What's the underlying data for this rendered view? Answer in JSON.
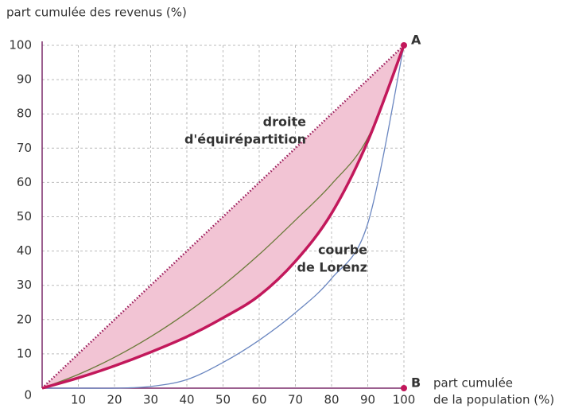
{
  "chart_data": {
    "type": "line",
    "ylabel": "part cumulée des revenus (%)",
    "xlabel": [
      "part cumulée",
      "de la population (%)"
    ],
    "x": [
      0,
      10,
      20,
      30,
      40,
      50,
      60,
      70,
      80,
      90,
      100
    ],
    "xlim": [
      0,
      100
    ],
    "ylim": [
      0,
      100
    ],
    "xticks": [
      10,
      20,
      30,
      40,
      50,
      60,
      70,
      80,
      90,
      100
    ],
    "yticks": [
      0,
      10,
      20,
      30,
      40,
      50,
      60,
      70,
      80,
      90,
      100
    ],
    "grid": true,
    "axis_color": "#7a2a6a",
    "fill_between": [
      0,
      1
    ],
    "fill_color": "#f2c4d4",
    "series": [
      {
        "color": "#9b1b5a",
        "style": "dotted",
        "width": 2.5,
        "values": [
          0,
          10,
          20,
          30,
          40,
          50,
          60,
          70,
          80,
          90,
          100
        ]
      },
      {
        "color": "#c2185b",
        "style": "solid",
        "width": 3.5,
        "values": [
          0,
          3,
          6.5,
          10.5,
          15,
          20.5,
          27,
          37,
          51,
          72,
          100
        ]
      },
      {
        "color": "#6b7a3a",
        "style": "solid",
        "width": 1.3,
        "values": [
          0,
          4,
          9,
          15,
          22,
          30,
          39,
          49,
          59.5,
          73,
          100
        ]
      },
      {
        "color": "#6a86c0",
        "style": "solid",
        "width": 1.3,
        "values": [
          0,
          0,
          0,
          0.5,
          2.5,
          7.5,
          14,
          22,
          32,
          48,
          100
        ]
      }
    ],
    "points": [
      {
        "label": "A",
        "x": 100,
        "y": 100,
        "color": "#c2185b"
      },
      {
        "label": "B",
        "x": 100,
        "y": 0,
        "color": "#c2185b"
      }
    ],
    "annotations": [
      {
        "lines": [
          "droite",
          "d'équirépartition"
        ],
        "color": "#a0185a"
      },
      {
        "lines": [
          "courbe",
          "de Lorenz"
        ],
        "color": "#c2185b"
      }
    ]
  }
}
